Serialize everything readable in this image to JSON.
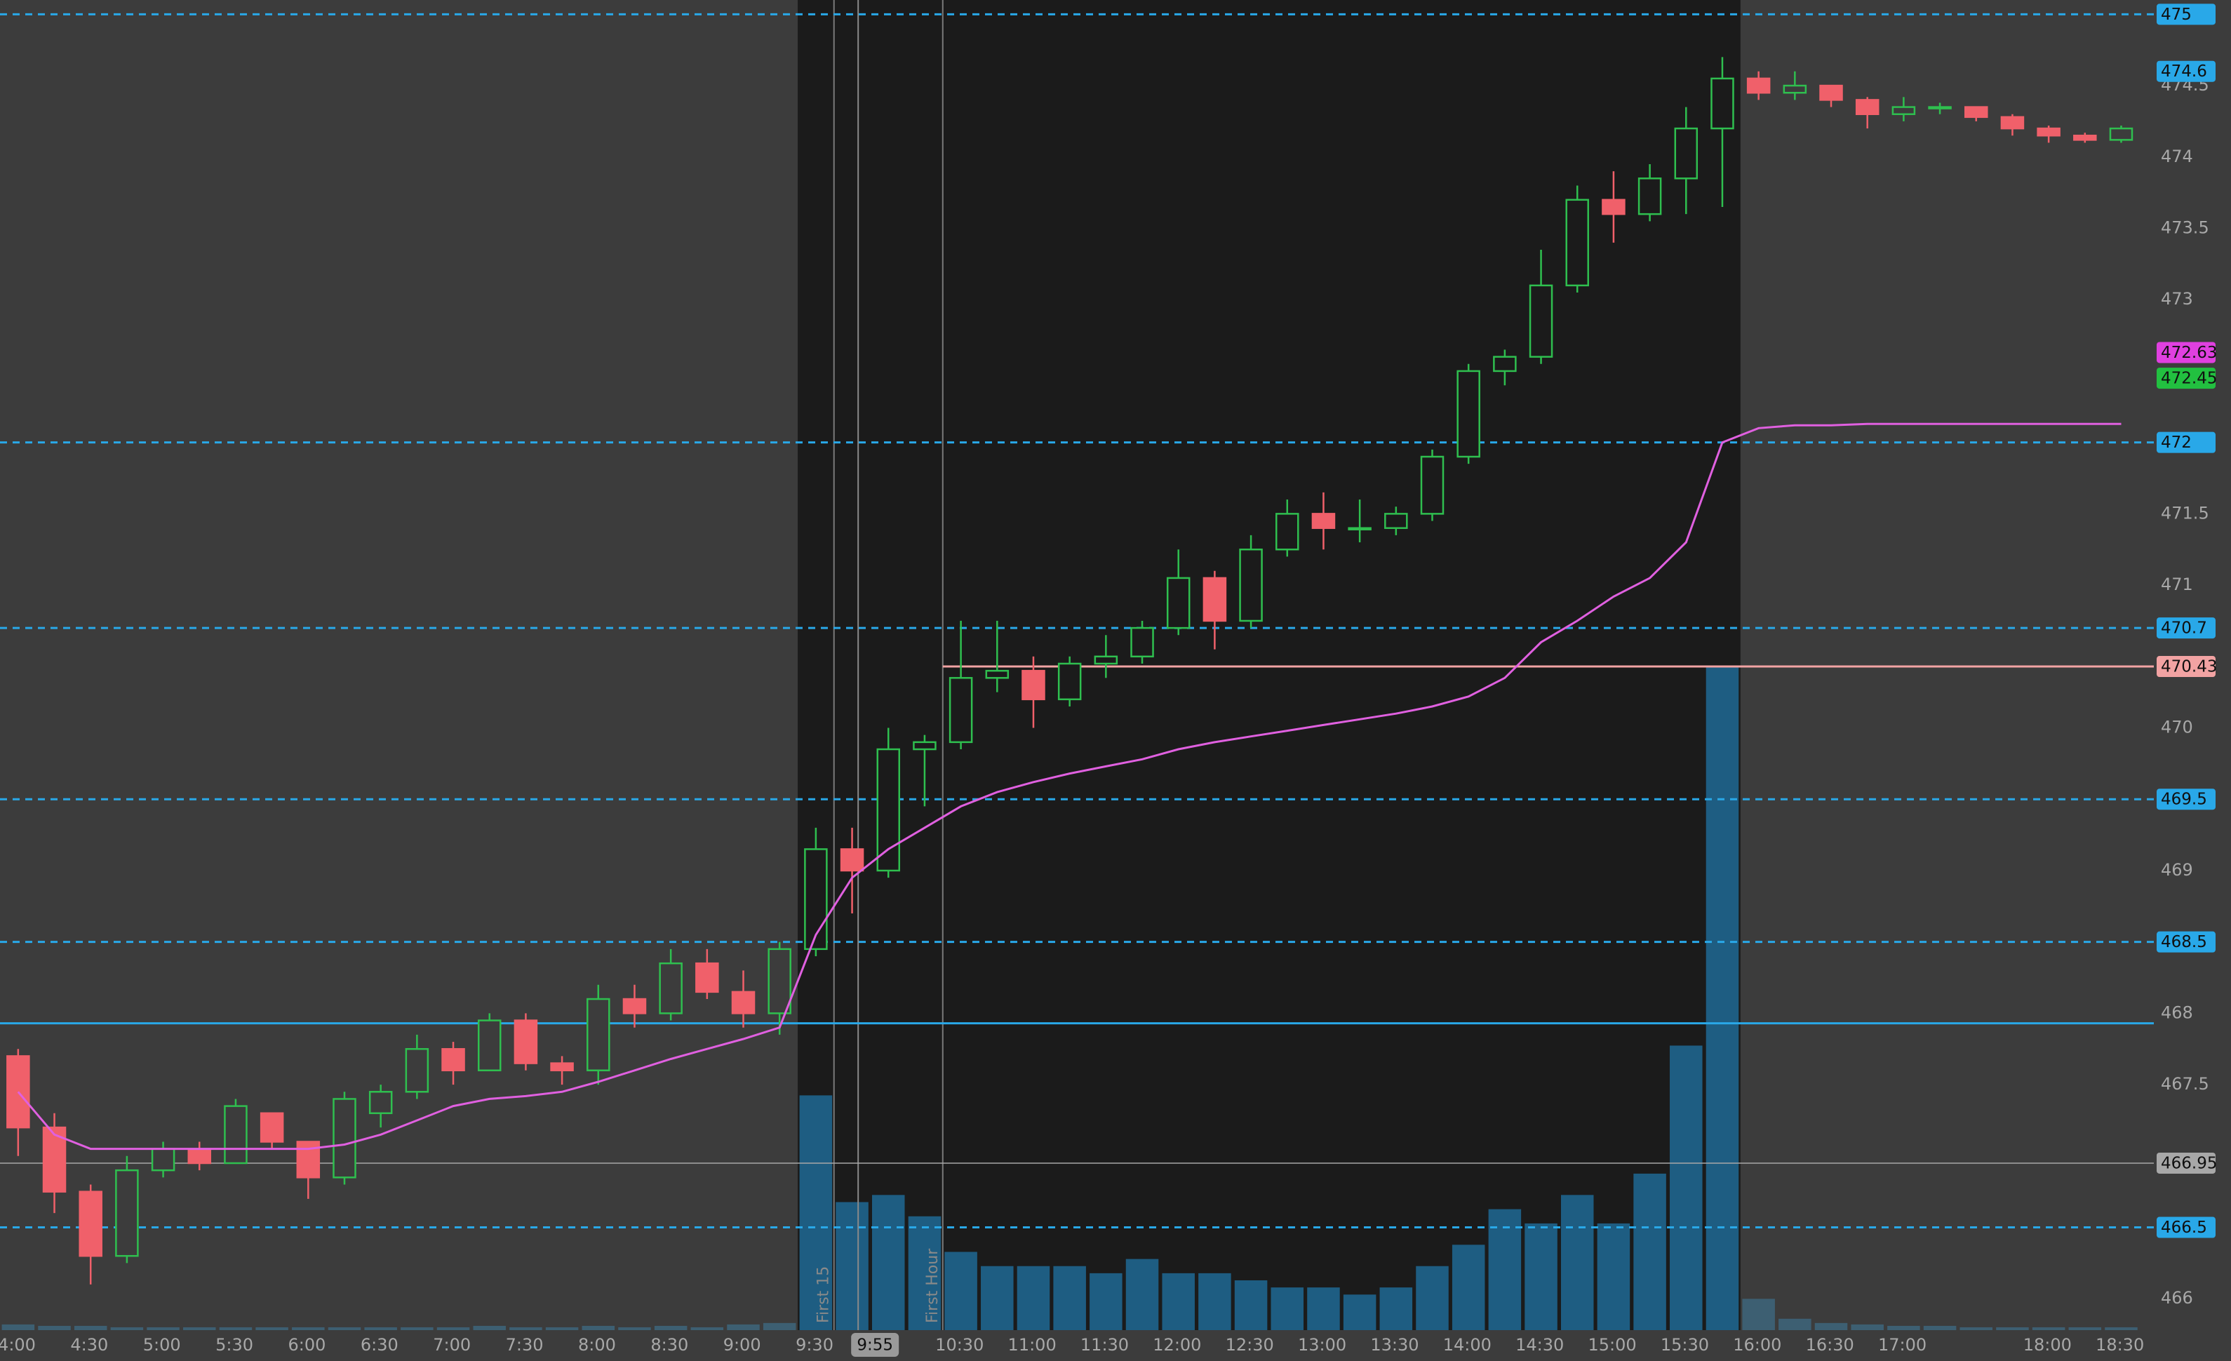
{
  "chart_data": {
    "type": "candlestick",
    "xlim": [
      4.0,
      18.85
    ],
    "ylim": [
      465.78,
      475.1
    ],
    "xticks": [
      {
        "value": 4.0,
        "label": "4:00"
      },
      {
        "value": 4.5,
        "label": "4:30"
      },
      {
        "value": 5.0,
        "label": "5:00"
      },
      {
        "value": 5.5,
        "label": "5:30"
      },
      {
        "value": 6.0,
        "label": "6:00"
      },
      {
        "value": 6.5,
        "label": "6:30"
      },
      {
        "value": 7.0,
        "label": "7:00"
      },
      {
        "value": 7.5,
        "label": "7:30"
      },
      {
        "value": 8.0,
        "label": "8:00"
      },
      {
        "value": 8.5,
        "label": "8:30"
      },
      {
        "value": 9.0,
        "label": "9:00"
      },
      {
        "value": 9.5,
        "label": "9:30"
      },
      {
        "value": 10.5,
        "label": "10:30"
      },
      {
        "value": 11.0,
        "label": "11:00"
      },
      {
        "value": 11.5,
        "label": "11:30"
      },
      {
        "value": 12.0,
        "label": "12:00"
      },
      {
        "value": 12.5,
        "label": "12:30"
      },
      {
        "value": 13.0,
        "label": "13:00"
      },
      {
        "value": 13.5,
        "label": "13:30"
      },
      {
        "value": 14.0,
        "label": "14:00"
      },
      {
        "value": 14.5,
        "label": "14:30"
      },
      {
        "value": 15.0,
        "label": "15:00"
      },
      {
        "value": 15.5,
        "label": "15:30"
      },
      {
        "value": 16.0,
        "label": "16:00"
      },
      {
        "value": 16.5,
        "label": "16:30"
      },
      {
        "value": 17.0,
        "label": "17:00"
      },
      {
        "value": 18.0,
        "label": "18:00"
      },
      {
        "value": 18.5,
        "label": "18:30"
      }
    ],
    "yticks": [
      466,
      467.5,
      468,
      469,
      470,
      471,
      471.5,
      473,
      473.5,
      474,
      474.5
    ],
    "cursor": {
      "value": 9.9167,
      "label": "9:55"
    },
    "sessions": [
      {
        "start": 9.5,
        "end": 16.0,
        "color": "#1b1b1b"
      }
    ],
    "extended_color": "#3c3c3c",
    "markers": [
      {
        "x": 9.75,
        "label": "First 15"
      },
      {
        "x": 10.5,
        "label": "First Hour"
      }
    ],
    "levels": [
      {
        "value": 475,
        "color": "#29a8e8",
        "line": "dashed",
        "badge": true
      },
      {
        "value": 474.6,
        "color": "#29a8e8",
        "line": "none",
        "badge": true
      },
      {
        "value": 472.63,
        "color": "#e040e0",
        "line": "none",
        "badge": true
      },
      {
        "value": 472.45,
        "color": "#22c040",
        "line": "none",
        "badge": true
      },
      {
        "value": 472,
        "color": "#29a8e8",
        "line": "dashed",
        "badge": true
      },
      {
        "value": 470.7,
        "color": "#29a8e8",
        "line": "dashed",
        "badge": true
      },
      {
        "value": 470.43,
        "color": "#f2a3a3",
        "line": "solid",
        "from": 10.5,
        "badge": true
      },
      {
        "value": 469.5,
        "color": "#29a8e8",
        "line": "dashed",
        "badge": true
      },
      {
        "value": 468.5,
        "color": "#29a8e8",
        "line": "dashed",
        "badge": true
      },
      {
        "value": 467.93,
        "color": "#29a8e8",
        "line": "solid",
        "badge": false
      },
      {
        "value": 466.95,
        "color": "#a8a8a8",
        "line": "solid",
        "badge": true
      },
      {
        "value": 466.5,
        "color": "#29a8e8",
        "line": "dashed",
        "badge": true
      }
    ],
    "up_color": "#2fbf4f",
    "down_color": "#f0606a",
    "x": [
      4.125,
      4.375,
      4.625,
      4.875,
      5.125,
      5.375,
      5.625,
      5.875,
      6.125,
      6.375,
      6.625,
      6.875,
      7.125,
      7.375,
      7.625,
      7.875,
      8.125,
      8.375,
      8.625,
      8.875,
      9.125,
      9.375,
      9.625,
      9.875,
      10.125,
      10.375,
      10.625,
      10.875,
      11.125,
      11.375,
      11.625,
      11.875,
      12.125,
      12.375,
      12.625,
      12.875,
      13.125,
      13.375,
      13.625,
      13.875,
      14.125,
      14.375,
      14.625,
      14.875,
      15.125,
      15.375,
      15.625,
      15.875,
      16.125,
      16.375,
      16.625,
      16.875,
      17.125,
      17.375,
      17.625,
      17.875,
      18.125,
      18.375,
      18.625
    ],
    "candles": [
      [
        467.7,
        467.75,
        467.0,
        467.2
      ],
      [
        467.2,
        467.3,
        466.6,
        466.75
      ],
      [
        466.75,
        466.8,
        466.1,
        466.3
      ],
      [
        466.3,
        467.0,
        466.25,
        466.9
      ],
      [
        466.9,
        467.1,
        466.85,
        467.05
      ],
      [
        467.05,
        467.1,
        466.9,
        466.95
      ],
      [
        466.95,
        467.4,
        466.95,
        467.35
      ],
      [
        467.3,
        467.3,
        467.05,
        467.1
      ],
      [
        467.1,
        467.1,
        466.7,
        466.85
      ],
      [
        466.85,
        467.45,
        466.8,
        467.4
      ],
      [
        467.3,
        467.5,
        467.2,
        467.45
      ],
      [
        467.45,
        467.85,
        467.4,
        467.75
      ],
      [
        467.75,
        467.8,
        467.5,
        467.6
      ],
      [
        467.6,
        468.0,
        467.6,
        467.95
      ],
      [
        467.95,
        468.0,
        467.6,
        467.65
      ],
      [
        467.65,
        467.7,
        467.5,
        467.6
      ],
      [
        467.6,
        468.2,
        467.5,
        468.1
      ],
      [
        468.1,
        468.2,
        467.9,
        468.0
      ],
      [
        468.0,
        468.45,
        467.95,
        468.35
      ],
      [
        468.35,
        468.45,
        468.1,
        468.15
      ],
      [
        468.15,
        468.3,
        467.9,
        468.0
      ],
      [
        468.0,
        468.5,
        467.85,
        468.45
      ],
      [
        468.45,
        469.3,
        468.4,
        469.15
      ],
      [
        469.15,
        469.3,
        468.7,
        469.0
      ],
      [
        469.0,
        470.0,
        468.95,
        469.85
      ],
      [
        469.85,
        469.95,
        469.45,
        469.9
      ],
      [
        469.9,
        470.75,
        469.85,
        470.35
      ],
      [
        470.35,
        470.75,
        470.25,
        470.4
      ],
      [
        470.4,
        470.5,
        470.0,
        470.2
      ],
      [
        470.2,
        470.5,
        470.15,
        470.45
      ],
      [
        470.45,
        470.65,
        470.35,
        470.5
      ],
      [
        470.5,
        470.75,
        470.45,
        470.7
      ],
      [
        470.7,
        471.25,
        470.65,
        471.05
      ],
      [
        471.05,
        471.1,
        470.55,
        470.75
      ],
      [
        470.75,
        471.35,
        470.7,
        471.25
      ],
      [
        471.25,
        471.6,
        471.2,
        471.5
      ],
      [
        471.5,
        471.65,
        471.25,
        471.4
      ],
      [
        471.4,
        471.6,
        471.3,
        471.4
      ],
      [
        471.4,
        471.55,
        471.35,
        471.5
      ],
      [
        471.5,
        471.95,
        471.45,
        471.9
      ],
      [
        471.9,
        472.55,
        471.85,
        472.5
      ],
      [
        472.5,
        472.65,
        472.4,
        472.6
      ],
      [
        472.6,
        473.35,
        472.55,
        473.1
      ],
      [
        473.1,
        473.8,
        473.05,
        473.7
      ],
      [
        473.7,
        473.9,
        473.4,
        473.6
      ],
      [
        473.6,
        473.95,
        473.55,
        473.85
      ],
      [
        473.85,
        474.35,
        473.6,
        474.2
      ],
      [
        474.2,
        474.7,
        473.65,
        474.55
      ],
      [
        474.55,
        474.6,
        474.4,
        474.45
      ],
      [
        474.45,
        474.6,
        474.4,
        474.5
      ],
      [
        474.5,
        474.5,
        474.35,
        474.4
      ],
      [
        474.4,
        474.42,
        474.2,
        474.3
      ],
      [
        474.3,
        474.42,
        474.25,
        474.35
      ],
      [
        474.35,
        474.38,
        474.3,
        474.35
      ],
      [
        474.35,
        474.35,
        474.25,
        474.28
      ],
      [
        474.28,
        474.3,
        474.15,
        474.2
      ],
      [
        474.2,
        474.22,
        474.1,
        474.15
      ],
      [
        474.15,
        474.17,
        474.1,
        474.12
      ],
      [
        474.12,
        474.22,
        474.1,
        474.2
      ]
    ],
    "vwap": {
      "color": "#e060e0",
      "values": [
        467.45,
        467.15,
        467.05,
        467.05,
        467.05,
        467.05,
        467.05,
        467.05,
        467.05,
        467.08,
        467.15,
        467.25,
        467.35,
        467.4,
        467.42,
        467.45,
        467.52,
        467.6,
        467.68,
        467.75,
        467.82,
        467.9,
        468.55,
        468.95,
        469.15,
        469.3,
        469.45,
        469.55,
        469.62,
        469.68,
        469.73,
        469.78,
        469.85,
        469.9,
        469.94,
        469.98,
        470.02,
        470.06,
        470.1,
        470.15,
        470.22,
        470.35,
        470.6,
        470.75,
        470.92,
        471.05,
        471.3,
        472.0,
        472.1,
        472.12,
        472.12,
        472.13,
        472.13,
        472.13,
        472.13,
        472.13,
        472.13,
        472.13,
        472.13
      ]
    },
    "volume": {
      "color": "#1e5d82",
      "extended_color": "#3d5f72",
      "lim": [
        0,
        480
      ],
      "values": [
        4,
        3,
        3,
        2,
        2,
        2,
        2,
        2,
        2,
        2,
        2,
        2,
        2,
        3,
        2,
        2,
        3,
        2,
        3,
        2,
        4,
        5,
        165,
        90,
        95,
        80,
        55,
        45,
        45,
        45,
        40,
        50,
        40,
        40,
        35,
        30,
        30,
        25,
        30,
        45,
        60,
        85,
        75,
        95,
        75,
        110,
        200,
        467,
        22,
        8,
        5,
        4,
        3,
        3,
        2,
        2,
        2,
        2,
        2
      ]
    }
  }
}
